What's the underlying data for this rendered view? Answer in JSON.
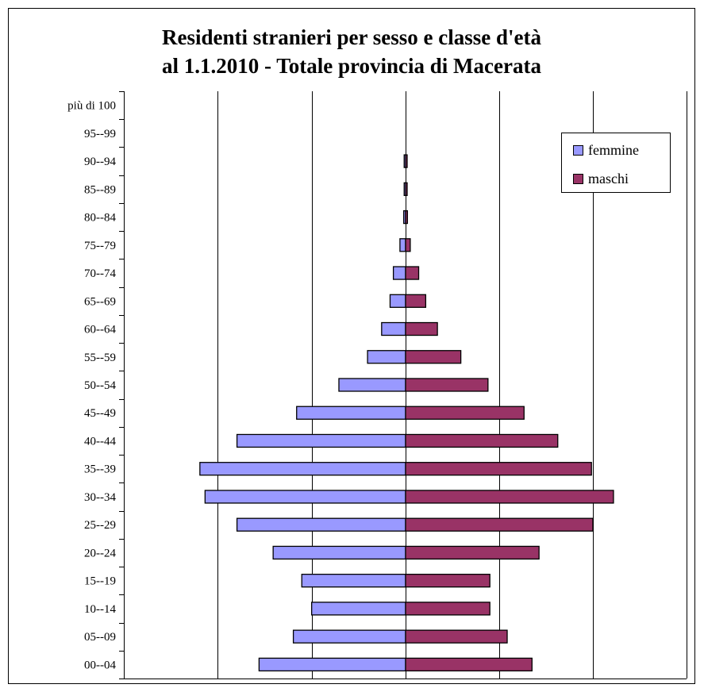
{
  "colors": {
    "femmine": "#9999ff",
    "maschi": "#993366",
    "grid": "#000000"
  },
  "chart_data": {
    "type": "bar",
    "orientation": "horizontal",
    "title": [
      "Residenti stranieri per sesso e classe d'età",
      "al 1.1.2010 - Totale provincia di Macerata"
    ],
    "categories": [
      "00--04",
      "05--09",
      "10--14",
      "15--19",
      "20--24",
      "25--29",
      "30--34",
      "35--39",
      "40--44",
      "45--49",
      "50--54",
      "55--59",
      "60--64",
      "65--69",
      "70--74",
      "75--79",
      "80--84",
      "85--89",
      "90--94",
      "95--99",
      "più di 100"
    ],
    "series": [
      {
        "name": "femmine",
        "values": [
          -1560,
          -1195,
          -1000,
          -1105,
          -1410,
          -1795,
          -2135,
          -2190,
          -1795,
          -1160,
          -710,
          -405,
          -255,
          -165,
          -130,
          -60,
          -20,
          -15,
          -15,
          0,
          0
        ]
      },
      {
        "name": "maschi",
        "values": [
          1350,
          1085,
          900,
          900,
          1425,
          2000,
          2220,
          1985,
          1625,
          1265,
          880,
          590,
          340,
          215,
          140,
          50,
          20,
          5,
          5,
          0,
          0
        ]
      }
    ],
    "xlim": [
      -3000,
      3000
    ],
    "x_gridlines": [
      -2000,
      -1000,
      0,
      1000,
      2000
    ],
    "x_tick_labels": false,
    "legend_position": "top-right",
    "grid": true
  }
}
